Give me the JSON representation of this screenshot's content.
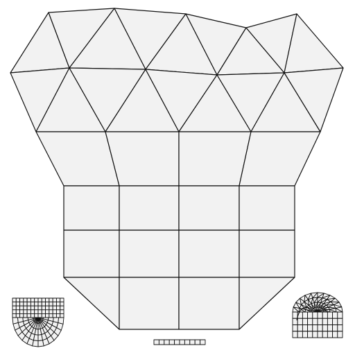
{
  "mesh": {
    "face_color": "#f2f2f2",
    "edge_color": "#111111",
    "main_mesh": {
      "name": "mixed-triangle-quad-mesh",
      "triangle_rows": 2,
      "trapezoid_cells": 4,
      "quad_grid": {
        "rows": 2,
        "cols": 4
      },
      "bottom_trapezoid_cells": 4
    },
    "thumbnails": [
      {
        "name": "u-shape-mesh-thumbnail",
        "icon": "u-shape-mesh-icon"
      },
      {
        "name": "flat-strip-mesh-thumbnail",
        "icon": "strip-mesh-icon"
      },
      {
        "name": "dome-mesh-thumbnail",
        "icon": "dome-mesh-icon"
      }
    ]
  }
}
